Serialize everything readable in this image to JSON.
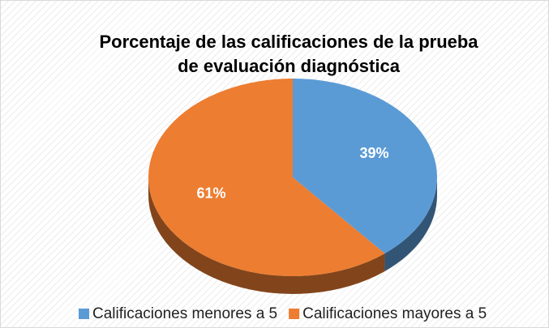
{
  "chart_data": {
    "type": "pie",
    "title": "Porcentaje de las calificaciones de la prueba de evaluación diagnóstica",
    "categories": [
      "Calificaciones menores a 5",
      "Calificaciones mayores a 5"
    ],
    "values": [
      39,
      61
    ],
    "value_labels": [
      "39%",
      "61%"
    ],
    "colors": [
      "#5b9bd5",
      "#ed7d31"
    ],
    "legend": "bottom"
  }
}
